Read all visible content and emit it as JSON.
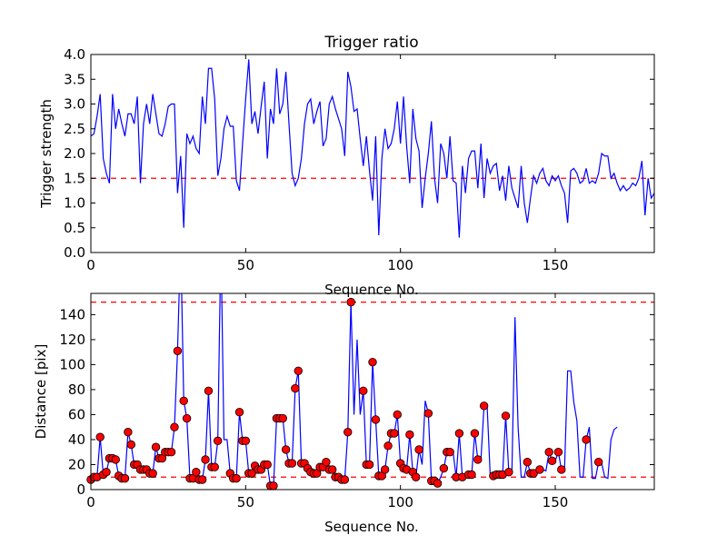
{
  "chart_data": [
    {
      "type": "line",
      "title": "Trigger ratio",
      "xlabel": "Sequence No.",
      "ylabel": "Trigger strength",
      "xlim": [
        0,
        182
      ],
      "ylim": [
        0,
        4.0
      ],
      "xticks": [
        "0",
        "50",
        "100",
        "150"
      ],
      "yticks": [
        "0.0",
        "0.5",
        "1.0",
        "1.5",
        "2.0",
        "2.5",
        "3.0",
        "3.5",
        "4.0"
      ],
      "threshold": 1.5,
      "colors": {
        "line": "#0000ff",
        "threshold": "#ff0000"
      },
      "series": [
        {
          "values": [
            2.35,
            2.4,
            2.75,
            3.2,
            1.9,
            1.6,
            1.4,
            3.2,
            2.5,
            2.9,
            2.6,
            2.35,
            2.8,
            2.8,
            2.6,
            3.15,
            1.4,
            2.6,
            3.0,
            2.6,
            3.2,
            2.8,
            2.4,
            2.35,
            2.6,
            2.95,
            3.0,
            3.0,
            1.2,
            1.95,
            0.5,
            2.4,
            2.2,
            2.35,
            2.1,
            2.0,
            3.15,
            2.6,
            3.72,
            3.72,
            3.1,
            1.55,
            1.9,
            2.5,
            2.75,
            2.55,
            2.55,
            1.45,
            1.25,
            2.2,
            3.1,
            3.9,
            2.6,
            2.85,
            2.4,
            2.95,
            3.45,
            1.9,
            2.9,
            2.6,
            3.72,
            2.8,
            3.0,
            3.65,
            2.6,
            1.6,
            1.35,
            1.5,
            1.9,
            2.6,
            3.0,
            3.1,
            2.6,
            2.85,
            3.05,
            2.15,
            2.3,
            3.0,
            3.15,
            2.9,
            2.7,
            2.5,
            1.95,
            3.65,
            3.35,
            2.85,
            2.9,
            2.3,
            1.75,
            2.35,
            1.65,
            1.05,
            2.35,
            0.35,
            1.9,
            2.5,
            2.1,
            2.2,
            2.5,
            3.05,
            2.2,
            3.15,
            2.15,
            1.4,
            2.9,
            2.3,
            2.05,
            0.9,
            1.5,
            2.0,
            2.65,
            1.5,
            1.0,
            2.2,
            2.0,
            1.5,
            2.35,
            1.45,
            1.4,
            0.3,
            1.75,
            1.2,
            1.9,
            2.05,
            2.05,
            1.3,
            2.2,
            1.1,
            1.9,
            1.6,
            1.75,
            1.8,
            1.25,
            1.55,
            1.05,
            1.75,
            1.3,
            1.1,
            0.9,
            1.75,
            1.0,
            0.6,
            1.1,
            1.55,
            1.4,
            1.6,
            1.7,
            1.45,
            1.35,
            1.55,
            1.45,
            1.55,
            1.35,
            1.2,
            0.6,
            1.65,
            1.7,
            1.6,
            1.4,
            1.45,
            1.7,
            1.4,
            1.45,
            1.4,
            1.6,
            2.0,
            1.95,
            1.95,
            1.5,
            1.6,
            1.4,
            1.25,
            1.35,
            1.25,
            1.3,
            1.4,
            1.35,
            1.5,
            1.85,
            0.75,
            1.5,
            1.1,
            1.2,
            1.25,
            1.15,
            1.25,
            1.25
          ]
        }
      ]
    },
    {
      "type": "line",
      "title": "",
      "xlabel": "Sequence No.",
      "ylabel": "Distance [pix]",
      "xlim": [
        0,
        182
      ],
      "ylim": [
        0,
        157
      ],
      "xticks": [
        "0",
        "50",
        "100",
        "150"
      ],
      "yticks": [
        "0",
        "20",
        "40",
        "60",
        "80",
        "100",
        "120",
        "140"
      ],
      "thresholds": [
        10,
        150
      ],
      "colors": {
        "line": "#0000ff",
        "threshold": "#ff0000",
        "marker": "#ff0000",
        "marker_edge": "#000000"
      },
      "series": [
        {
          "values": [
            8,
            10,
            10,
            42,
            12,
            14,
            25,
            25,
            24,
            11,
            9,
            9,
            46,
            36,
            20,
            20,
            16,
            16,
            16,
            13,
            13,
            34,
            25,
            25,
            30,
            30,
            30,
            50,
            111,
            200,
            71,
            57,
            9,
            9,
            14,
            8,
            8,
            24,
            79,
            18,
            18,
            39,
            200,
            40,
            40,
            13,
            9,
            9,
            62,
            39,
            39,
            13,
            13,
            19,
            16,
            16,
            20,
            20,
            3,
            3,
            57,
            57,
            57,
            32,
            21,
            21,
            81,
            95,
            21,
            21,
            17,
            14,
            13,
            13,
            18,
            18,
            22,
            16,
            16,
            10,
            10,
            8,
            8,
            46,
            150,
            60,
            120,
            60,
            79,
            20,
            20,
            102,
            56,
            11,
            11,
            16,
            35,
            45,
            45,
            60,
            21,
            17,
            16,
            44,
            14,
            10,
            32,
            20,
            71,
            61,
            7,
            7,
            5,
            10,
            17,
            30,
            30,
            30,
            10,
            45,
            10,
            10,
            12,
            12,
            45,
            24,
            24,
            67,
            67,
            11,
            11,
            12,
            12,
            12,
            59,
            14,
            14,
            138,
            50,
            10,
            10,
            22,
            13,
            13,
            13,
            16,
            16,
            15,
            30,
            23,
            23,
            30,
            16,
            16,
            95,
            95,
            70,
            55,
            10,
            10,
            40,
            50,
            9,
            9,
            22,
            21,
            10,
            9,
            40,
            48,
            50
          ],
          "markers": [
            true,
            true,
            true,
            true,
            true,
            true,
            true,
            true,
            true,
            true,
            true,
            true,
            true,
            true,
            true,
            true,
            true,
            true,
            true,
            true,
            true,
            true,
            true,
            true,
            true,
            true,
            true,
            true,
            true,
            false,
            true,
            true,
            true,
            true,
            true,
            true,
            true,
            true,
            true,
            true,
            true,
            true,
            false,
            false,
            false,
            true,
            true,
            true,
            true,
            true,
            true,
            true,
            true,
            true,
            true,
            true,
            true,
            true,
            true,
            true,
            true,
            true,
            true,
            true,
            true,
            true,
            true,
            true,
            true,
            true,
            true,
            true,
            true,
            true,
            true,
            true,
            true,
            true,
            true,
            true,
            true,
            true,
            true,
            true,
            true,
            false,
            false,
            false,
            true,
            true,
            true,
            true,
            true,
            true,
            true,
            true,
            true,
            true,
            true,
            true,
            true,
            true,
            true,
            true,
            true,
            true,
            true,
            false,
            false,
            true,
            true,
            true,
            true,
            false,
            true,
            true,
            true,
            false,
            true,
            true,
            true,
            false,
            true,
            true,
            true,
            true,
            false,
            true,
            false,
            false,
            true,
            true,
            true,
            true,
            true,
            true,
            false,
            false,
            false,
            false,
            false,
            true,
            true,
            true,
            false,
            true,
            false,
            false,
            true,
            true,
            false,
            true,
            true,
            false,
            false,
            false,
            false,
            false,
            false,
            false,
            true,
            false,
            false,
            false,
            true,
            false,
            false,
            false,
            false,
            false,
            false
          ]
        }
      ]
    }
  ]
}
